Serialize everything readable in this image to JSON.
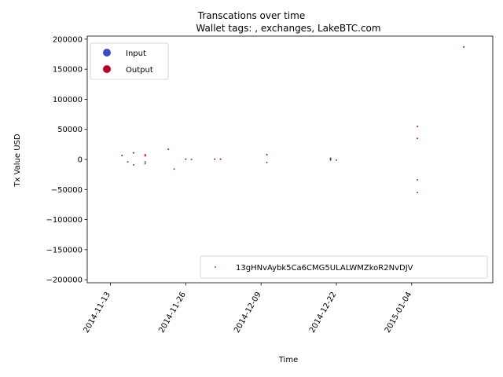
{
  "chart_data": {
    "type": "scatter",
    "suptitle": "Transcations over time",
    "title": "Wallet tags: , exchanges, LakeBTC.com",
    "xlabel": "Time",
    "ylabel": "Tx Value USD",
    "xlim": [
      "2014-11-09",
      "2015-01-18"
    ],
    "ylim": [
      -205000,
      205000
    ],
    "x_ticks": [
      "2014-11-13",
      "2014-11-26",
      "2014-12-09",
      "2014-12-22",
      "2015-01-04"
    ],
    "y_ticks": [
      -200000,
      -150000,
      -100000,
      -50000,
      0,
      50000,
      100000,
      150000,
      200000
    ],
    "y_tick_labels": [
      "−200000",
      "−150000",
      "−100000",
      "−50000",
      "0",
      "50000",
      "100000",
      "150000",
      "200000"
    ],
    "colors": {
      "input": "#3b4cc0",
      "output": "#b40426",
      "address": "#1f8a8a"
    },
    "legend_top": {
      "placement": "upper-left",
      "entries": [
        "Input",
        "Output"
      ]
    },
    "legend_bottom": {
      "placement": "lower-right",
      "entries": [
        "13gHNvAybk5Ca6CMG5ULALWMZkoR2NvDJV"
      ]
    },
    "series": [
      {
        "name": "Output",
        "points": [
          {
            "x": "2014-11-15",
            "y": 6500
          },
          {
            "x": "2014-11-17",
            "y": 11000
          },
          {
            "x": "2014-11-19",
            "y": 8000
          },
          {
            "x": "2014-11-19",
            "y": 6000
          },
          {
            "x": "2014-11-23",
            "y": 17000
          },
          {
            "x": "2014-11-26",
            "y": 500
          },
          {
            "x": "2014-12-01",
            "y": 500
          },
          {
            "x": "2014-12-02",
            "y": 500
          },
          {
            "x": "2014-12-10",
            "y": 8000
          },
          {
            "x": "2014-12-21",
            "y": 2000
          },
          {
            "x": "2014-12-21",
            "y": 500
          },
          {
            "x": "2015-01-05",
            "y": 55000
          },
          {
            "x": "2015-01-05",
            "y": 35000
          },
          {
            "x": "2015-01-13",
            "y": 187000
          }
        ]
      },
      {
        "name": "Input",
        "points": [
          {
            "x": "2014-11-16",
            "y": -4000
          },
          {
            "x": "2014-11-17",
            "y": -9000
          },
          {
            "x": "2014-11-19",
            "y": -7000
          },
          {
            "x": "2014-11-19",
            "y": -4000
          },
          {
            "x": "2014-11-24",
            "y": -16000
          },
          {
            "x": "2014-11-27",
            "y": 0
          },
          {
            "x": "2014-12-10",
            "y": -5000
          },
          {
            "x": "2014-12-21",
            "y": -1000
          },
          {
            "x": "2014-12-22",
            "y": -1000
          },
          {
            "x": "2015-01-05",
            "y": -34000
          },
          {
            "x": "2015-01-05",
            "y": -55000
          }
        ]
      }
    ]
  }
}
